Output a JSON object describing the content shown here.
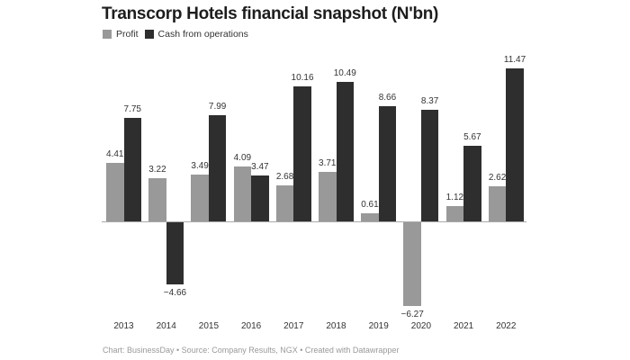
{
  "title": "Transcorp Hotels financial snapshot (N'bn)",
  "legend": [
    {
      "label": "Profit",
      "color": "#999999"
    },
    {
      "label": "Cash from operations",
      "color": "#2e2e2e"
    }
  ],
  "footer": "Chart: BusinessDay • Source: Company Results, NGX • Created with Datawrapper",
  "chart_data": {
    "type": "bar",
    "title": "Transcorp Hotels financial snapshot (N'bn)",
    "xlabel": "",
    "ylabel": "",
    "categories": [
      "2013",
      "2014",
      "2015",
      "2016",
      "2017",
      "2018",
      "2019",
      "2020",
      "2021",
      "2022"
    ],
    "series": [
      {
        "name": "Profit",
        "color": "#999999",
        "values": [
          4.41,
          3.22,
          3.49,
          4.09,
          2.68,
          3.71,
          0.61,
          -6.27,
          1.12,
          2.62
        ]
      },
      {
        "name": "Cash from operations",
        "color": "#2e2e2e",
        "values": [
          7.75,
          -4.66,
          7.99,
          3.47,
          10.16,
          10.49,
          8.66,
          8.37,
          5.67,
          11.47
        ]
      }
    ],
    "value_labels": [
      [
        "4.41",
        "3.22",
        "3.49",
        "4.09",
        "2.68",
        "3.71",
        "0.61",
        "−6.27",
        "1.12",
        "2.62"
      ],
      [
        "7.75",
        "−4.66",
        "7.99",
        "3.47",
        "10.16",
        "10.49",
        "8.66",
        "8.37",
        "5.67",
        "11.47"
      ]
    ],
    "ylim": [
      -6.5,
      12
    ],
    "grid": false,
    "legend_position": "top-left",
    "annotation": "Chart: BusinessDay • Source: Company Results, NGX • Created with Datawrapper"
  }
}
